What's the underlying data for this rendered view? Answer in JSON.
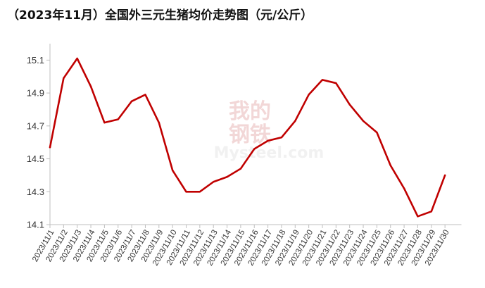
{
  "title": "（2023年11月）全国外三元生猪均价走势图（元/公斤）",
  "watermark": {
    "line1": "我的",
    "line2": "钢铁",
    "line3": "Mysteel.com"
  },
  "colors": {
    "line": "#C00000",
    "axis": "#BFBFBF",
    "watermark": "#E9B8B8"
  },
  "chart_data": {
    "type": "line",
    "title": "（2023年11月）全国外三元生猪均价走势图（元/公斤）",
    "xlabel": "",
    "ylabel": "",
    "ylim": [
      14.1,
      15.2
    ],
    "yticks": [
      14.1,
      14.3,
      14.5,
      14.7,
      14.9,
      15.1
    ],
    "grid": false,
    "legend": "none",
    "categories": [
      "2023/11/1",
      "2023/11/2",
      "2023/11/3",
      "2023/11/4",
      "2023/11/5",
      "2023/11/6",
      "2023/11/7",
      "2023/11/8",
      "2023/11/9",
      "2023/11/10",
      "2023/11/11",
      "2023/11/12",
      "2023/11/13",
      "2023/11/14",
      "2023/11/15",
      "2023/11/16",
      "2023/11/17",
      "2023/11/18",
      "2023/11/19",
      "2023/11/20",
      "2023/11/21",
      "2023/11/22",
      "2023/11/23",
      "2023/11/24",
      "2023/11/25",
      "2023/11/26",
      "2023/11/27",
      "2023/11/28",
      "2023/11/29",
      "2023/11/30"
    ],
    "series": [
      {
        "values": [
          14.57,
          14.99,
          15.11,
          14.94,
          14.72,
          14.74,
          14.85,
          14.89,
          14.72,
          14.43,
          14.3,
          14.3,
          14.36,
          14.39,
          14.44,
          14.56,
          14.61,
          14.63,
          14.73,
          14.89,
          14.98,
          14.96,
          14.83,
          14.73,
          14.66,
          14.46,
          14.32,
          14.15,
          14.18,
          14.4
        ]
      }
    ]
  }
}
